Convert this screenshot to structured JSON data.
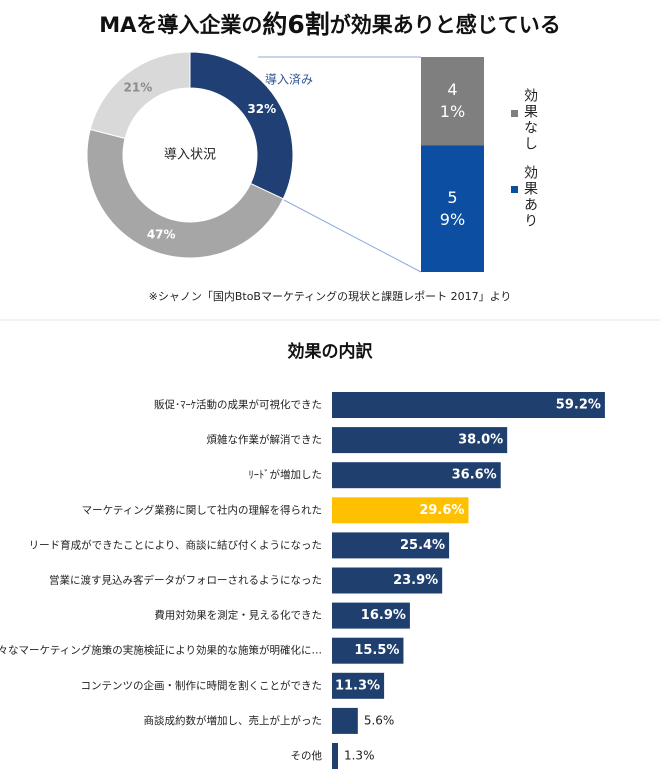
{
  "title_parts": [
    "MAを導入企業の",
    "約6割",
    "が効果ありと感じている"
  ],
  "source_note": "※シャノン「国内BtoBマーケティングの現状と課題レポート 2017」より",
  "chart_data": [
    {
      "type": "donut",
      "center_label": "導入状況",
      "annotation": "導入済み",
      "values": [
        32,
        47,
        21
      ],
      "value_labels": [
        "32%",
        "47%",
        "21%"
      ],
      "colors": [
        "#1f3f75",
        "#a6a6a6",
        "#d9d9d9"
      ]
    },
    {
      "type": "stacked_bar",
      "series": [
        {
          "name": "効果あり",
          "color": "#0b4ea2",
          "values": [
            59
          ],
          "value_labels": [
            "59%"
          ]
        },
        {
          "name": "効果なし",
          "color": "#7f7f7f",
          "values": [
            41
          ],
          "value_labels": [
            "41%"
          ]
        }
      ]
    },
    {
      "type": "hbar",
      "title": "効果の内訳",
      "categories": [
        "販促･ﾏｰｹ活動の成果が可視化できた",
        "煩雑な作業が解消できた",
        "ﾘｰﾄﾞが増加した",
        "マーケティング業務に関して社内の理解を得られた",
        "リード育成ができたことにより、商談に結び付くようになった",
        "営業に渡す見込み客データがフォローされるようになった",
        "費用対効果を測定・見える化できた",
        "様々なマーケティング施策の実施検証により効果的な施策が明確化に…",
        "コンテンツの企画・制作に時間を割くことができた",
        "商談成約数が増加し、売上が上がった",
        "その他"
      ],
      "values": [
        59.2,
        38.0,
        36.6,
        29.6,
        25.4,
        23.9,
        16.9,
        15.5,
        11.3,
        5.6,
        1.3
      ],
      "value_labels": [
        "59.2%",
        "38.0%",
        "36.6%",
        "29.6%",
        "25.4%",
        "23.9%",
        "16.9%",
        "15.5%",
        "11.3%",
        "5.6%",
        "1.3%"
      ],
      "colors": [
        "#1f3f6e",
        "#1f3f6e",
        "#1f3f6e",
        "#ffc000",
        "#1f3f6e",
        "#1f3f6e",
        "#1f3f6e",
        "#1f3f6e",
        "#1f3f6e",
        "#1f3f6e",
        "#1f3f6e"
      ]
    }
  ]
}
